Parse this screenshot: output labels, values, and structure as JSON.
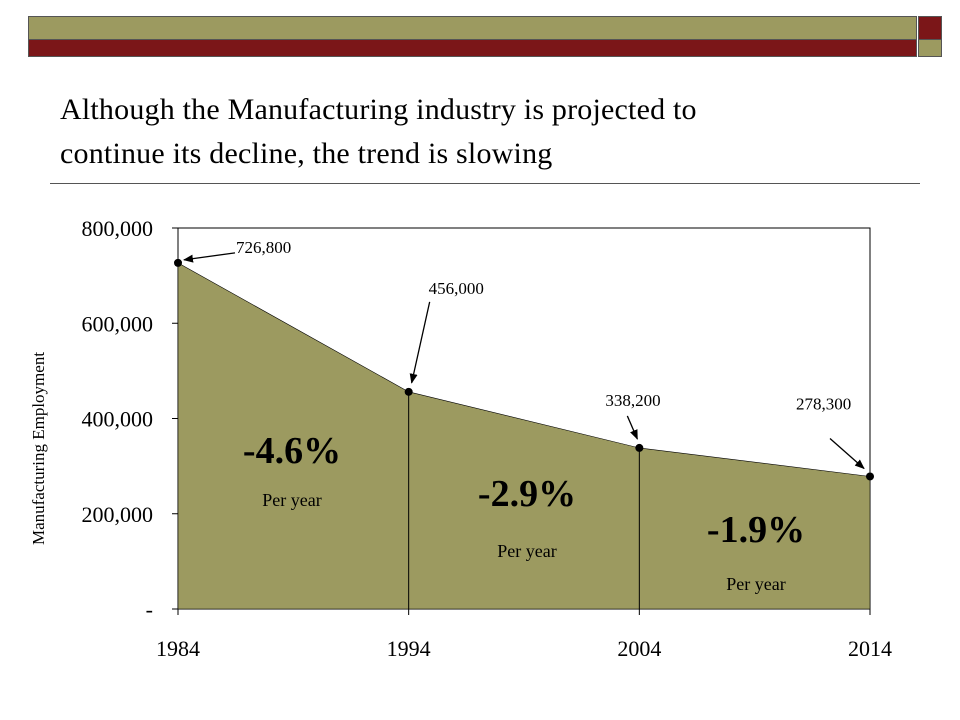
{
  "slide": {
    "title_line1": "Although the Manufacturing industry is projected to",
    "title_line2": "continue its decline, the trend is slowing",
    "colors": {
      "olive": "#9c9a60",
      "maroon": "#7b1618"
    }
  },
  "chart_data": {
    "type": "area",
    "title": "",
    "xlabel": "",
    "ylabel": "Manufacturing Employment",
    "x": [
      1984,
      1994,
      2004,
      2014
    ],
    "categories": [
      "1984",
      "1994",
      "2004",
      "2014"
    ],
    "values": [
      726800,
      456000,
      338200,
      278300
    ],
    "point_labels": [
      "726,800",
      "456,000",
      "338,200",
      "278,300"
    ],
    "ylim": [
      0,
      800000
    ],
    "yticks": [
      0,
      200000,
      400000,
      600000,
      800000
    ],
    "ytick_labels": [
      "-",
      "200,000",
      "400,000",
      "600,000",
      "800,000"
    ],
    "grid": false,
    "fill_color": "#9c9a60",
    "segments": [
      {
        "rate": "-4.6%",
        "note": "Per year"
      },
      {
        "rate": "-2.9%",
        "note": "Per year"
      },
      {
        "rate": "-1.9%",
        "note": "Per year"
      }
    ]
  }
}
